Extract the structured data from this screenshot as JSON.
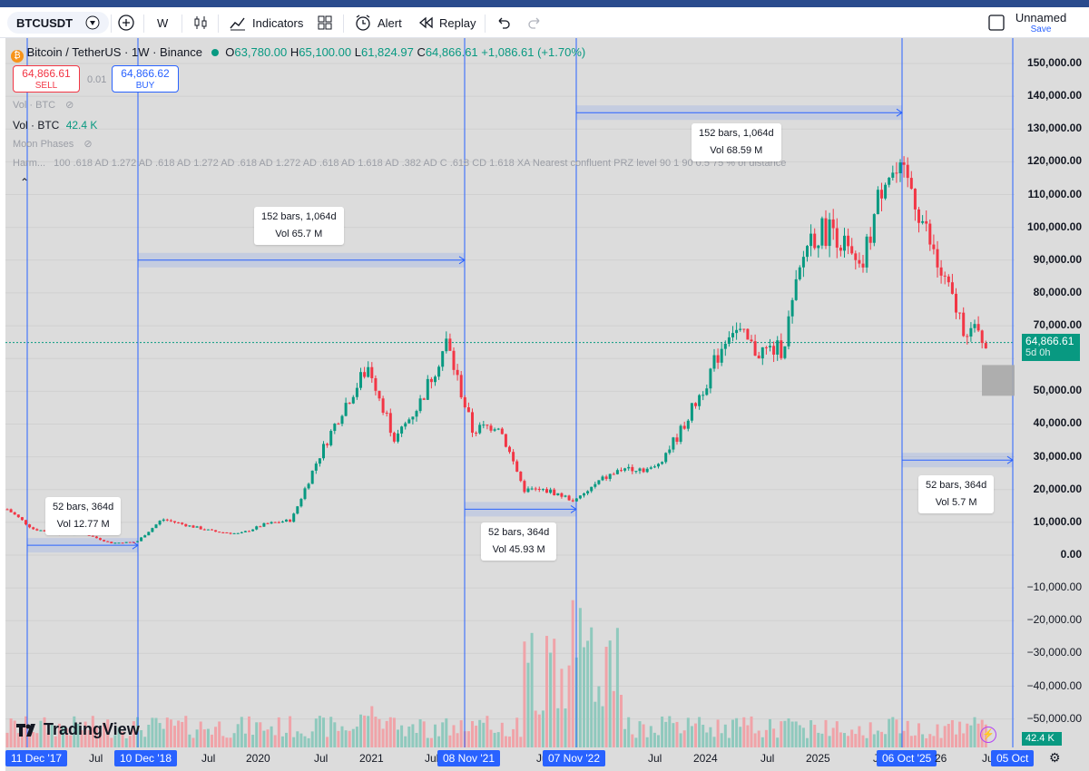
{
  "toolbar": {
    "symbol": "BTCUSDT",
    "interval": "W",
    "indicators_label": "Indicators",
    "alert_label": "Alert",
    "replay_label": "Replay",
    "layout_name": "Unnamed",
    "save_label": "Save"
  },
  "legend": {
    "title": "Bitcoin / TetherUS · 1W · Binance",
    "open_key": "O",
    "open": "63,780.00",
    "high_key": "H",
    "high": "65,100.00",
    "low_key": "L",
    "low": "61,824.97",
    "close_key": "C",
    "close": "64,866.61",
    "change": "+1,086.61 (+1.70%)",
    "sell_price": "64,866.61",
    "sell_label": "SELL",
    "spread": "0.01",
    "buy_price": "64,866.62",
    "buy_label": "BUY"
  },
  "indicators": [
    {
      "label": "Vol · BTC",
      "value": ""
    },
    {
      "label": "Vol · BTC",
      "value": "42.4 K"
    },
    {
      "label": "Moon Phases",
      "value": ""
    },
    {
      "label": "Harm...",
      "value": "100 .618 AD 1.272 AD .618 AD 1.272 AD .618 AD 1.272 AD .618 AD 1.618 AD .382 AD C .618 CD 1.618 XA Nearest confluent PRZ level 90 1 90 0.5 75 % of distance"
    }
  ],
  "callouts": [
    {
      "line1": "52 bars, 364d",
      "line2": "Vol 12.77 M"
    },
    {
      "line1": "152 bars, 1,064d",
      "line2": "Vol 65.7 M"
    },
    {
      "line1": "52 bars, 364d",
      "line2": "Vol 45.93 M"
    },
    {
      "line1": "152 bars, 1,064d",
      "line2": "Vol 68.59 M"
    },
    {
      "line1": "52 bars, 364d",
      "line2": "Vol 5.7 M"
    }
  ],
  "price_axis": [
    "150,000.00",
    "140,000.00",
    "130,000.00",
    "120,000.00",
    "110,000.00",
    "100,000.00",
    "90,000.00",
    "80,000.00",
    "70,000.00",
    "50,000.00",
    "40,000.00",
    "30,000.00",
    "20,000.00",
    "10,000.00",
    "0.00",
    "−10,000.00",
    "−20,000.00",
    "−30,000.00",
    "−40,000.00",
    "−50,000.00"
  ],
  "price_tag": {
    "value": "64,866.61",
    "countdown": "5d 0h"
  },
  "volume_tag": "42.4 K",
  "time_axis": [
    {
      "label": "11 Dec '17",
      "highlight": true
    },
    {
      "label": "Jul",
      "highlight": false
    },
    {
      "label": "10 Dec '18",
      "highlight": true
    },
    {
      "label": "Jul",
      "highlight": false
    },
    {
      "label": "2020",
      "highlight": false
    },
    {
      "label": "Jul",
      "highlight": false
    },
    {
      "label": "2021",
      "highlight": false
    },
    {
      "label": "Jul",
      "highlight": false
    },
    {
      "label": "08 Nov '21",
      "highlight": true
    },
    {
      "label": "Jul",
      "highlight": false
    },
    {
      "label": "07 Nov '22",
      "highlight": true
    },
    {
      "label": "Jul",
      "highlight": false
    },
    {
      "label": "2024",
      "highlight": false
    },
    {
      "label": "Jul",
      "highlight": false
    },
    {
      "label": "2025",
      "highlight": false
    },
    {
      "label": "Jul",
      "highlight": false
    },
    {
      "label": "06 Oct '25",
      "highlight": true
    },
    {
      "label": "26",
      "highlight": false
    },
    {
      "label": "Jul",
      "highlight": false
    },
    {
      "label": "05 Oct",
      "highlight": true
    }
  ],
  "branding": "TradingView",
  "colors": {
    "up": "#089981",
    "down": "#f23645",
    "accent": "#2962ff",
    "bg": "#dcdcdc"
  },
  "chart_data": {
    "type": "candlestick",
    "title": "Bitcoin / TetherUS · 1W · Binance",
    "x": [
      "2017-12",
      "2018-03",
      "2018-06",
      "2018-09",
      "2018-12",
      "2019-03",
      "2019-06",
      "2019-09",
      "2019-12",
      "2020-03",
      "2020-06",
      "2020-09",
      "2020-12",
      "2021-02",
      "2021-04",
      "2021-06",
      "2021-08",
      "2021-11",
      "2022-01",
      "2022-04",
      "2022-06",
      "2022-09",
      "2022-11",
      "2023-02",
      "2023-05",
      "2023-08",
      "2023-11",
      "2024-02",
      "2024-03",
      "2024-06",
      "2024-09",
      "2024-11",
      "2025-01",
      "2025-04",
      "2025-07",
      "2025-10",
      "2025-12",
      "2026-02",
      "2026-03"
    ],
    "close": [
      14000,
      8000,
      6500,
      6500,
      3700,
      4000,
      11000,
      9000,
      7200,
      6500,
      9500,
      10700,
      29000,
      45000,
      58000,
      35000,
      47000,
      65000,
      38000,
      40000,
      20000,
      19500,
      16500,
      23000,
      27000,
      26000,
      37000,
      52000,
      70000,
      62000,
      63000,
      97000,
      100000,
      85000,
      118000,
      112000,
      88000,
      70000,
      64866
    ],
    "ylim": [
      -50000,
      155000
    ],
    "ylabel": "",
    "measurements": [
      {
        "bars": 52,
        "days": 364,
        "volume": "12.77 M",
        "from": "11 Dec '17",
        "to": "10 Dec '18"
      },
      {
        "bars": 152,
        "days": 1064,
        "volume": "65.7 M",
        "from": "10 Dec '18",
        "to": "08 Nov '21"
      },
      {
        "bars": 52,
        "days": 364,
        "volume": "45.93 M",
        "from": "08 Nov '21",
        "to": "07 Nov '22"
      },
      {
        "bars": 152,
        "days": 1064,
        "volume": "68.59 M",
        "from": "07 Nov '22",
        "to": "06 Oct '25"
      },
      {
        "bars": 52,
        "days": 364,
        "volume": "5.7 M",
        "from": "06 Oct '25",
        "to": "05 Oct"
      }
    ]
  }
}
